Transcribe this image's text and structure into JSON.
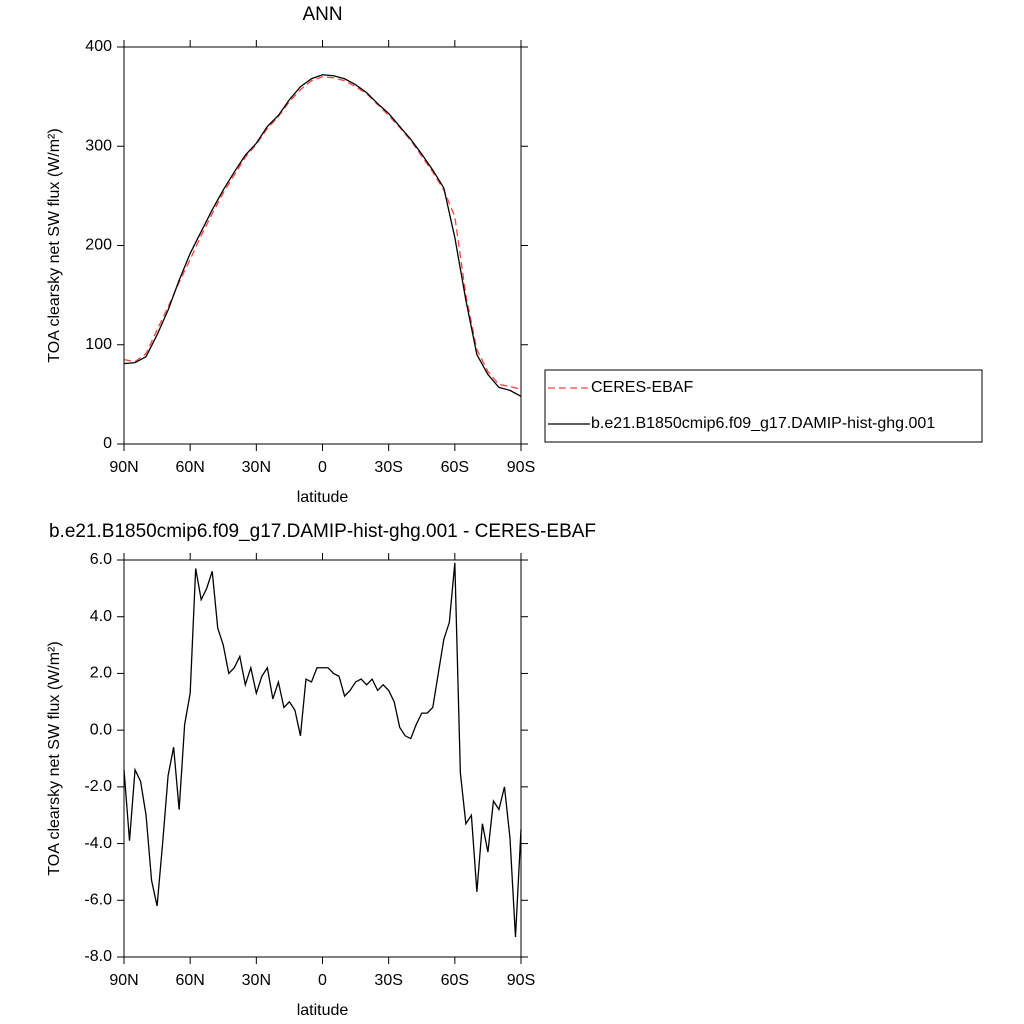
{
  "chart_data": [
    {
      "type": "line",
      "title": "ANN",
      "xlabel": "latitude",
      "ylabel": "TOA clearsky net SW flux (W/m²)",
      "x": [
        90,
        85,
        80,
        75,
        70,
        65,
        60,
        55,
        50,
        45,
        40,
        35,
        30,
        25,
        20,
        15,
        10,
        5,
        0,
        -5,
        -10,
        -15,
        -20,
        -25,
        -30,
        -35,
        -40,
        -45,
        -50,
        -55,
        -60,
        -65,
        -70,
        -75,
        -80,
        -85,
        -90
      ],
      "series": [
        {
          "name": "CERES-EBAF",
          "color": "#ff4040",
          "dash": true,
          "values": [
            85,
            83,
            91,
            115,
            138,
            163,
            186,
            210,
            232,
            253,
            271,
            289,
            302,
            318,
            330,
            345,
            357,
            366,
            370,
            369,
            366,
            360,
            353,
            342,
            331,
            319,
            306,
            290,
            274,
            256,
            229,
            150,
            95,
            73,
            60,
            58,
            55
          ]
        },
        {
          "name": "b.e21.B1850cmip6.f09_g17.DAMIP-hist-ghg.001",
          "color": "#000000",
          "dash": false,
          "values": [
            81,
            82,
            88,
            110,
            135,
            165,
            192,
            214,
            236,
            256,
            274,
            291,
            303,
            320,
            331,
            347,
            360,
            368,
            372,
            371,
            368,
            362,
            354,
            343,
            333,
            320,
            307,
            292,
            276,
            258,
            208,
            145,
            90,
            70,
            57,
            54,
            48
          ]
        }
      ],
      "xlim": [
        90,
        -90
      ],
      "xticks": [
        {
          "value": 90,
          "label": "90N"
        },
        {
          "value": 60,
          "label": "60N"
        },
        {
          "value": 30,
          "label": "30N"
        },
        0,
        {
          "value": -30,
          "label": "30S"
        },
        {
          "value": -60,
          "label": "60S"
        },
        {
          "value": -90,
          "label": "90S"
        }
      ],
      "ylim": [
        0,
        400
      ],
      "yticks": [
        0,
        100,
        200,
        300,
        400
      ],
      "legend": "right"
    },
    {
      "type": "line",
      "title": "b.e21.B1850cmip6.f09_g17.DAMIP-hist-ghg.001 - CERES-EBAF",
      "xlabel": "latitude",
      "ylabel": "TOA clearsky net SW flux (W/m²)",
      "x": [
        90,
        87.5,
        85,
        82.5,
        80,
        77.5,
        75,
        72.5,
        70,
        67.5,
        65,
        62.5,
        60,
        57.5,
        55,
        52.5,
        50,
        47.5,
        45,
        42.5,
        40,
        37.5,
        35,
        32.5,
        30,
        27.5,
        25,
        22.5,
        20,
        17.5,
        15,
        12.5,
        10,
        7.5,
        5,
        2.5,
        0,
        -2.5,
        -5,
        -7.5,
        -10,
        -12.5,
        -15,
        -17.5,
        -20,
        -22.5,
        -25,
        -27.5,
        -30,
        -32.5,
        -35,
        -37.5,
        -40,
        -42.5,
        -45,
        -47.5,
        -50,
        -52.5,
        -55,
        -57.5,
        -60,
        -62.5,
        -65,
        -67.5,
        -70,
        -72.5,
        -75,
        -77.5,
        -80,
        -82.5,
        -85,
        -87.5,
        -90
      ],
      "values": [
        -1.4,
        -3.9,
        -1.4,
        -1.8,
        -3.0,
        -5.3,
        -6.2,
        -4.0,
        -1.6,
        -0.6,
        -2.8,
        0.2,
        1.3,
        5.7,
        4.6,
        5.0,
        5.6,
        3.6,
        3.0,
        2.0,
        2.2,
        2.6,
        1.6,
        2.2,
        1.3,
        1.9,
        2.2,
        1.1,
        1.7,
        0.8,
        1.0,
        0.7,
        -0.2,
        1.8,
        1.7,
        2.2,
        2.2,
        2.2,
        2.0,
        1.9,
        1.2,
        1.4,
        1.7,
        1.8,
        1.6,
        1.8,
        1.4,
        1.6,
        1.4,
        1.0,
        0.1,
        -0.2,
        -0.3,
        0.2,
        0.6,
        0.6,
        0.8,
        2.0,
        3.2,
        3.8,
        5.9,
        -1.5,
        -3.3,
        -3.0,
        -5.7,
        -3.3,
        -4.3,
        -2.5,
        -2.8,
        -2.0,
        -3.8,
        -7.3,
        -3.5
      ],
      "color": "#000000",
      "xlim": [
        90,
        -90
      ],
      "xticks": [
        {
          "value": 90,
          "label": "90N"
        },
        {
          "value": 60,
          "label": "60N"
        },
        {
          "value": 30,
          "label": "30N"
        },
        0,
        {
          "value": -30,
          "label": "30S"
        },
        {
          "value": -60,
          "label": "60S"
        },
        {
          "value": -90,
          "label": "90S"
        }
      ],
      "ylim": [
        -8,
        6
      ],
      "yticks": [
        {
          "value": -8,
          "label": "-8.0"
        },
        {
          "value": -6,
          "label": "-6.0"
        },
        {
          "value": -4,
          "label": "-4.0"
        },
        {
          "value": -2,
          "label": "-2.0"
        },
        {
          "value": 0,
          "label": "0.0"
        },
        {
          "value": 2,
          "label": "2.0"
        },
        {
          "value": 4,
          "label": "4.0"
        },
        {
          "value": 6,
          "label": "6.0"
        }
      ]
    }
  ]
}
